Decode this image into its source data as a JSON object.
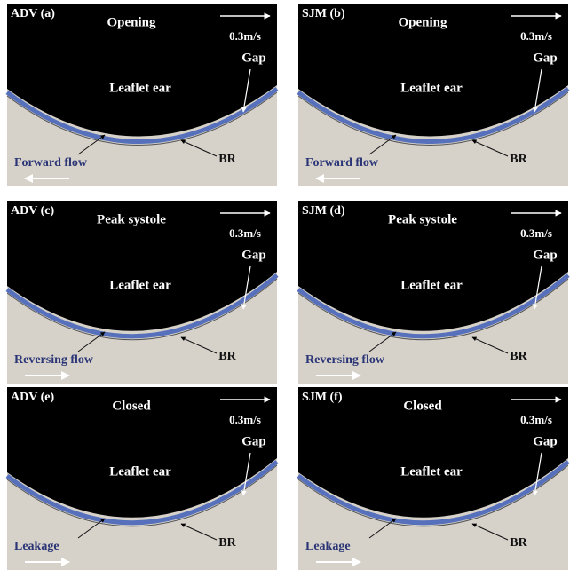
{
  "panels": [
    {
      "id": "ADV (a)",
      "phase": "Opening",
      "scale": "0.3m/s",
      "region": "Leaflet ear",
      "gap": "Gap",
      "br": "BR",
      "flow": "Forward flow"
    },
    {
      "id": "SJM (b)",
      "phase": "Opening",
      "scale": "0.3m/s",
      "region": "Leaflet ear",
      "gap": "Gap",
      "br": "BR",
      "flow": "Forward flow"
    },
    {
      "id": "ADV (c)",
      "phase": "Peak systole",
      "scale": "0.3m/s",
      "region": "Leaflet ear",
      "gap": "Gap",
      "br": "BR",
      "flow": "Reversing flow"
    },
    {
      "id": "SJM (d)",
      "phase": "Peak systole",
      "scale": "0.3m/s",
      "region": "Leaflet ear",
      "gap": "Gap",
      "br": "BR",
      "flow": "Reversing flow"
    },
    {
      "id": "ADV (e)",
      "phase": "Closed",
      "scale": "0.3m/s",
      "region": "Leaflet ear",
      "gap": "Gap",
      "br": "BR",
      "flow": "Leakage"
    },
    {
      "id": "SJM (f)",
      "phase": "Closed",
      "scale": "0.3m/s",
      "region": "Leaflet ear",
      "gap": "Gap",
      "br": "BR",
      "flow": "Leakage"
    }
  ]
}
